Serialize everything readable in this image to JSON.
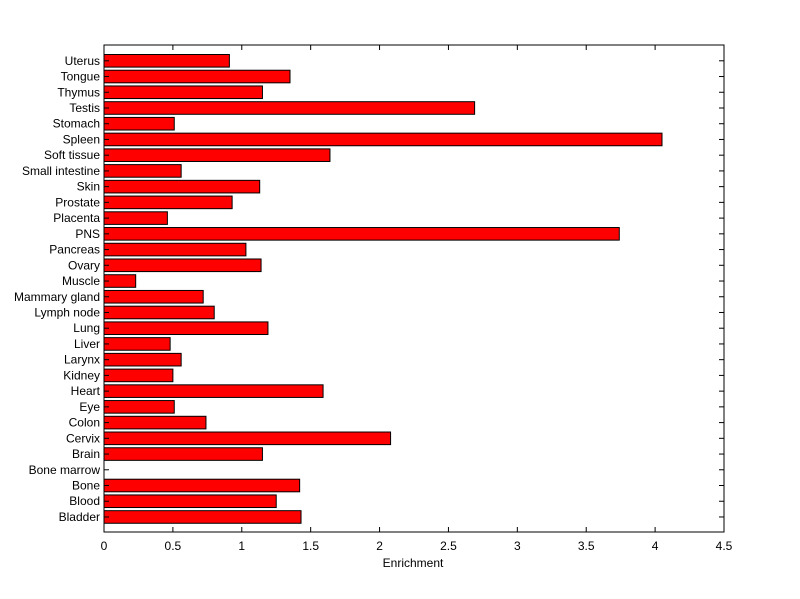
{
  "chart_data": {
    "type": "bar",
    "orientation": "horizontal",
    "title": "",
    "xlabel": "Enrichment",
    "ylabel": "",
    "xlim": [
      0,
      4.5
    ],
    "xticks": [
      "0",
      "0.5",
      "1",
      "1.5",
      "2",
      "2.5",
      "3",
      "3.5",
      "4",
      "4.5"
    ],
    "grid": false,
    "bar_color": "#ff0000",
    "categories": [
      "Uterus",
      "Tongue",
      "Thymus",
      "Testis",
      "Stomach",
      "Spleen",
      "Soft tissue",
      "Small intestine",
      "Skin",
      "Prostate",
      "Placenta",
      "PNS",
      "Pancreas",
      "Ovary",
      "Muscle",
      "Mammary gland",
      "Lymph node",
      "Lung",
      "Liver",
      "Larynx",
      "Kidney",
      "Heart",
      "Eye",
      "Colon",
      "Cervix",
      "Brain",
      "Bone marrow",
      "Bone",
      "Blood",
      "Bladder"
    ],
    "values": [
      0.91,
      1.35,
      1.15,
      2.69,
      0.51,
      4.05,
      1.64,
      0.56,
      1.13,
      0.93,
      0.46,
      3.74,
      1.03,
      1.14,
      0.23,
      0.72,
      0.8,
      1.19,
      0.48,
      0.56,
      0.5,
      1.59,
      0.51,
      0.74,
      2.08,
      1.15,
      0.0,
      1.42,
      1.25,
      1.43
    ]
  }
}
